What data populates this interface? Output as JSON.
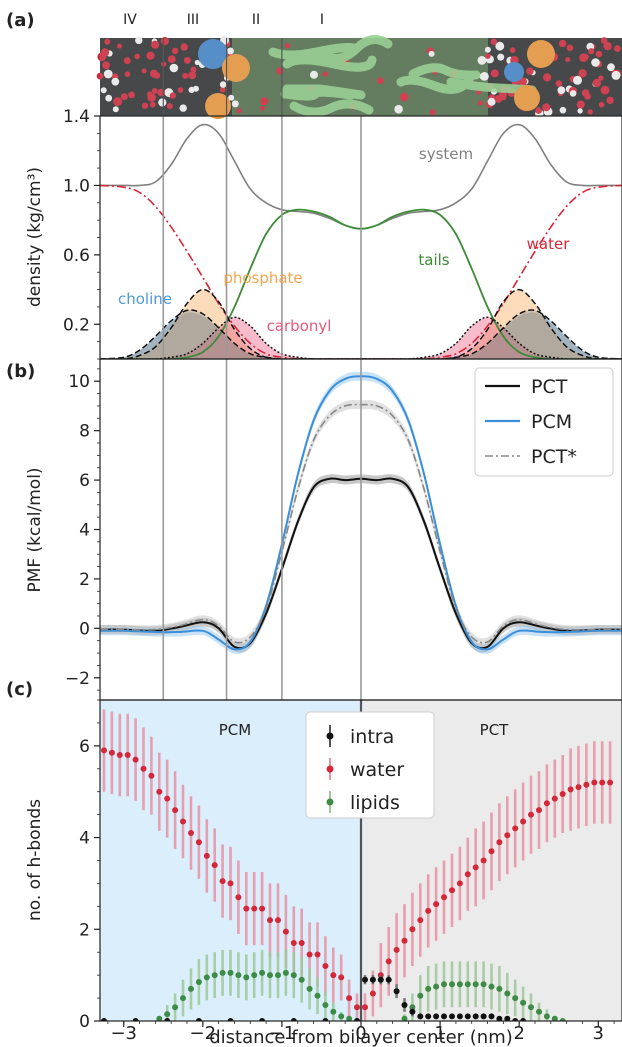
{
  "panels": {
    "a": "(a)",
    "b": "(b)",
    "c": "(c)"
  },
  "regions": [
    "IV",
    "III",
    "II",
    "I"
  ],
  "region_bounds_nm": [
    -2.5,
    -1.7,
    -1.0,
    0.0
  ],
  "chart_data": [
    {
      "type": "area",
      "panel": "(a)",
      "ylabel": "density (kg/cm³)",
      "xlim": [
        -3.3,
        3.3
      ],
      "ylim": [
        0,
        1.4
      ],
      "yticks": [
        0.2,
        0.6,
        1.0,
        1.4
      ],
      "x": [
        -3.3,
        -3.0,
        -2.8,
        -2.6,
        -2.4,
        -2.2,
        -2.0,
        -1.8,
        -1.6,
        -1.4,
        -1.2,
        -1.0,
        -0.8,
        -0.6,
        -0.4,
        -0.2,
        0.0,
        0.2,
        0.4,
        0.6,
        0.8,
        1.0,
        1.2,
        1.4,
        1.6,
        1.8,
        2.0,
        2.2,
        2.4,
        2.6,
        2.8,
        3.0,
        3.3
      ],
      "series": [
        {
          "name": "system",
          "values": [
            1.0,
            1.0,
            1.0,
            1.02,
            1.12,
            1.27,
            1.35,
            1.3,
            1.14,
            0.98,
            0.9,
            0.86,
            0.85,
            0.84,
            0.81,
            0.77,
            0.75,
            0.77,
            0.81,
            0.84,
            0.85,
            0.86,
            0.9,
            0.98,
            1.14,
            1.3,
            1.35,
            1.27,
            1.12,
            1.02,
            1.0,
            1.0,
            1.0
          ]
        },
        {
          "name": "water",
          "values": [
            1.0,
            0.99,
            0.96,
            0.88,
            0.76,
            0.62,
            0.47,
            0.32,
            0.19,
            0.09,
            0.03,
            0.01,
            0.0,
            0.0,
            0.0,
            0.0,
            0.0,
            0.0,
            0.0,
            0.0,
            0.0,
            0.01,
            0.03,
            0.09,
            0.19,
            0.32,
            0.47,
            0.62,
            0.76,
            0.88,
            0.96,
            0.99,
            1.0
          ]
        },
        {
          "name": "tails",
          "values": [
            0.0,
            0.0,
            0.0,
            0.0,
            0.0,
            0.01,
            0.04,
            0.13,
            0.3,
            0.52,
            0.72,
            0.83,
            0.86,
            0.85,
            0.82,
            0.77,
            0.75,
            0.77,
            0.82,
            0.85,
            0.86,
            0.83,
            0.72,
            0.52,
            0.3,
            0.13,
            0.04,
            0.01,
            0.0,
            0.0,
            0.0,
            0.0,
            0.0
          ]
        },
        {
          "name": "choline",
          "values": [
            0.0,
            0.01,
            0.05,
            0.13,
            0.22,
            0.28,
            0.26,
            0.18,
            0.09,
            0.03,
            0.01,
            0.0,
            0.0,
            0.0,
            0.0,
            0.0,
            0.0,
            0.0,
            0.0,
            0.0,
            0.0,
            0.0,
            0.01,
            0.03,
            0.09,
            0.18,
            0.26,
            0.28,
            0.22,
            0.13,
            0.05,
            0.01,
            0.0
          ]
        },
        {
          "name": "phosphate",
          "values": [
            0.0,
            0.0,
            0.02,
            0.07,
            0.18,
            0.32,
            0.4,
            0.33,
            0.17,
            0.06,
            0.01,
            0.0,
            0.0,
            0.0,
            0.0,
            0.0,
            0.0,
            0.0,
            0.0,
            0.0,
            0.0,
            0.0,
            0.01,
            0.06,
            0.17,
            0.33,
            0.4,
            0.32,
            0.18,
            0.07,
            0.02,
            0.0,
            0.0
          ]
        },
        {
          "name": "carbonyl",
          "values": [
            0.0,
            0.0,
            0.0,
            0.0,
            0.01,
            0.03,
            0.09,
            0.18,
            0.24,
            0.19,
            0.09,
            0.03,
            0.01,
            0.0,
            0.0,
            0.0,
            0.0,
            0.0,
            0.0,
            0.0,
            0.01,
            0.03,
            0.09,
            0.19,
            0.24,
            0.18,
            0.09,
            0.03,
            0.01,
            0.0,
            0.0,
            0.0,
            0.0
          ]
        }
      ]
    },
    {
      "type": "line",
      "panel": "(b)",
      "ylabel": "PMF (kcal/mol)",
      "xlim": [
        -3.3,
        3.3
      ],
      "ylim": [
        -2.9,
        10.9
      ],
      "yticks": [
        -2,
        0,
        2,
        4,
        6,
        8,
        10
      ],
      "legend": "top-right",
      "x": [
        -3.3,
        -3.0,
        -2.6,
        -2.3,
        -2.0,
        -1.8,
        -1.6,
        -1.4,
        -1.2,
        -1.0,
        -0.8,
        -0.6,
        -0.4,
        -0.2,
        0.0,
        0.2,
        0.4,
        0.6,
        0.8,
        1.0,
        1.2,
        1.4,
        1.6,
        1.8,
        2.0,
        2.3,
        2.6,
        3.0,
        3.3
      ],
      "series": [
        {
          "name": "PCT",
          "values": [
            -0.05,
            -0.05,
            -0.1,
            0.05,
            0.25,
            0.0,
            -0.75,
            -0.6,
            0.6,
            2.4,
            4.3,
            5.7,
            6.05,
            6.0,
            6.05,
            6.0,
            6.05,
            5.7,
            4.3,
            2.4,
            0.6,
            -0.6,
            -0.75,
            0.0,
            0.25,
            0.05,
            -0.1,
            -0.05,
            -0.05
          ]
        },
        {
          "name": "PCM",
          "values": [
            -0.1,
            -0.1,
            -0.15,
            -0.15,
            -0.1,
            -0.45,
            -0.85,
            -0.55,
            0.9,
            3.4,
            6.2,
            8.4,
            9.6,
            10.1,
            10.2,
            10.1,
            9.6,
            8.4,
            6.2,
            3.4,
            0.9,
            -0.55,
            -0.85,
            -0.45,
            -0.1,
            -0.15,
            -0.15,
            -0.1,
            -0.1
          ]
        },
        {
          "name": "PCT*",
          "values": [
            -0.05,
            -0.05,
            -0.05,
            0.1,
            0.35,
            0.1,
            -0.55,
            -0.35,
            0.8,
            3.1,
            5.6,
            7.6,
            8.6,
            9.0,
            9.05,
            9.0,
            8.6,
            7.6,
            5.6,
            3.1,
            0.8,
            -0.35,
            -0.55,
            0.1,
            0.35,
            0.1,
            -0.05,
            -0.05,
            -0.05
          ]
        }
      ]
    },
    {
      "type": "scatter",
      "panel": "(c)",
      "xlabel": "distance from bilayer center (nm)",
      "ylabel": "no. of h-bonds",
      "xlim": [
        -3.3,
        3.3
      ],
      "ylim": [
        0,
        7
      ],
      "xticks": [
        -3,
        -2,
        -1,
        0,
        1,
        2,
        3
      ],
      "yticks": [
        0,
        2,
        4,
        6
      ],
      "legend": "top-center",
      "half_labels": {
        "left": "PCM",
        "right": "PCT"
      },
      "series": [
        {
          "name": "water",
          "x": [
            -3.25,
            -3.15,
            -3.05,
            -2.95,
            -2.85,
            -2.75,
            -2.65,
            -2.55,
            -2.45,
            -2.35,
            -2.25,
            -2.15,
            -2.05,
            -1.95,
            -1.85,
            -1.75,
            -1.65,
            -1.55,
            -1.45,
            -1.35,
            -1.25,
            -1.15,
            -1.05,
            -0.95,
            -0.85,
            -0.75,
            -0.65,
            -0.55,
            -0.45,
            -0.35,
            -0.25,
            -0.15,
            -0.05
          ],
          "values": [
            5.9,
            5.85,
            5.8,
            5.8,
            5.7,
            5.5,
            5.35,
            5.0,
            4.85,
            4.6,
            4.35,
            4.1,
            3.9,
            3.6,
            3.4,
            3.05,
            3.0,
            2.7,
            2.45,
            2.45,
            2.45,
            2.2,
            2.2,
            1.95,
            1.7,
            1.7,
            1.45,
            1.45,
            1.2,
            1.0,
            0.95,
            0.5,
            0.3
          ],
          "err": [
            0.9,
            0.9,
            0.9,
            0.9,
            0.9,
            0.9,
            0.85,
            0.85,
            0.85,
            0.85,
            0.8,
            0.8,
            0.8,
            0.8,
            0.8,
            0.8,
            0.8,
            0.8,
            0.8,
            0.8,
            0.8,
            0.8,
            0.8,
            0.8,
            0.8,
            0.75,
            0.7,
            0.7,
            0.65,
            0.6,
            0.5,
            0.4,
            0.3
          ]
        },
        {
          "name": "water",
          "x": [
            0.05,
            0.15,
            0.25,
            0.35,
            0.45,
            0.55,
            0.65,
            0.75,
            0.85,
            0.95,
            1.05,
            1.15,
            1.25,
            1.35,
            1.45,
            1.55,
            1.65,
            1.75,
            1.85,
            1.95,
            2.05,
            2.15,
            2.25,
            2.35,
            2.45,
            2.55,
            2.65,
            2.75,
            2.85,
            2.95,
            3.05,
            3.15
          ],
          "values": [
            0.3,
            0.6,
            1.0,
            1.3,
            1.55,
            1.75,
            2.0,
            2.2,
            2.4,
            2.55,
            2.7,
            2.85,
            3.0,
            3.2,
            3.35,
            3.5,
            3.7,
            3.9,
            4.05,
            4.2,
            4.35,
            4.5,
            4.6,
            4.75,
            4.85,
            4.95,
            5.05,
            5.1,
            5.15,
            5.2,
            5.2,
            5.2
          ],
          "err": [
            0.3,
            0.5,
            0.7,
            0.75,
            0.8,
            0.8,
            0.8,
            0.8,
            0.8,
            0.8,
            0.8,
            0.8,
            0.8,
            0.8,
            0.85,
            0.85,
            0.85,
            0.85,
            0.85,
            0.85,
            0.85,
            0.85,
            0.85,
            0.85,
            0.85,
            0.85,
            0.9,
            0.9,
            0.9,
            0.9,
            0.9,
            0.9
          ]
        },
        {
          "name": "lipids",
          "x": [
            -2.55,
            -2.45,
            -2.35,
            -2.25,
            -2.15,
            -2.05,
            -1.95,
            -1.85,
            -1.75,
            -1.65,
            -1.55,
            -1.45,
            -1.35,
            -1.25,
            -1.15,
            -1.05,
            -0.95,
            -0.85,
            -0.75,
            -0.65,
            -0.55,
            -0.45,
            -0.35,
            -0.25,
            -0.15,
            -0.05
          ],
          "values": [
            0.05,
            0.15,
            0.3,
            0.5,
            0.7,
            0.85,
            0.95,
            1.0,
            1.05,
            1.05,
            1.0,
            0.95,
            1.0,
            1.05,
            1.0,
            1.0,
            1.05,
            1.0,
            0.9,
            0.7,
            0.55,
            0.35,
            0.2,
            0.1,
            0.05,
            0.0
          ],
          "err": [
            0.05,
            0.2,
            0.3,
            0.4,
            0.45,
            0.5,
            0.5,
            0.5,
            0.5,
            0.5,
            0.5,
            0.5,
            0.5,
            0.5,
            0.5,
            0.5,
            0.5,
            0.5,
            0.5,
            0.45,
            0.4,
            0.3,
            0.2,
            0.1,
            0.05,
            0.0
          ]
        },
        {
          "name": "lipids",
          "x": [
            0.55,
            0.65,
            0.75,
            0.85,
            0.95,
            1.05,
            1.15,
            1.25,
            1.35,
            1.45,
            1.55,
            1.65,
            1.75,
            1.85,
            1.95,
            2.05,
            2.15,
            2.25,
            2.35,
            2.45,
            2.55
          ],
          "values": [
            0.05,
            0.3,
            0.55,
            0.7,
            0.75,
            0.8,
            0.8,
            0.8,
            0.8,
            0.8,
            0.8,
            0.75,
            0.7,
            0.6,
            0.5,
            0.4,
            0.3,
            0.2,
            0.1,
            0.05,
            0.0
          ],
          "err": [
            0.1,
            0.3,
            0.45,
            0.5,
            0.5,
            0.5,
            0.5,
            0.5,
            0.5,
            0.5,
            0.5,
            0.5,
            0.5,
            0.45,
            0.4,
            0.35,
            0.3,
            0.2,
            0.15,
            0.05,
            0.0
          ]
        },
        {
          "name": "intra",
          "x": [
            0.05,
            0.15,
            0.25,
            0.35,
            0.45,
            0.55,
            0.65,
            0.75,
            0.85,
            0.95,
            1.05,
            1.15,
            1.25,
            1.35,
            1.45,
            1.55,
            1.65,
            1.75,
            1.85,
            1.95,
            2.05
          ],
          "values": [
            0.9,
            0.9,
            0.9,
            0.9,
            0.65,
            0.35,
            0.2,
            0.1,
            0.1,
            0.1,
            0.1,
            0.1,
            0.1,
            0.1,
            0.1,
            0.1,
            0.1,
            0.05,
            0.05,
            0.0,
            0.0
          ],
          "err": [
            0.1,
            0.1,
            0.1,
            0.1,
            0.15,
            0.15,
            0.1,
            0.05,
            0.05,
            0.05,
            0.05,
            0.05,
            0.05,
            0.05,
            0.05,
            0.05,
            0.05,
            0.05,
            0.05,
            0.0,
            0.0
          ]
        },
        {
          "name": "intra",
          "x": [
            -3.25,
            -2.85,
            -2.45,
            -2.05,
            -1.65,
            -1.25,
            -0.85,
            -0.45,
            -0.05
          ],
          "values": [
            0.0,
            0.0,
            0.0,
            0.0,
            0.0,
            0.0,
            0.0,
            0.0,
            0.0
          ],
          "err": [
            0,
            0,
            0,
            0,
            0,
            0,
            0,
            0,
            0
          ]
        }
      ]
    }
  ],
  "colors": {
    "system": "#808080",
    "water": "#d62739",
    "tails": "#3d8b37",
    "choline": "#4f9ad3",
    "phosphate": "#f4a64f",
    "carbonyl": "#e8587c",
    "PCT": "#111111",
    "PCM": "#3a8fd8",
    "PCTstar": "#888888",
    "intra": "#111111",
    "lipids": "#3d8b45",
    "pcm_bg": "#dbeefb",
    "pct_bg": "#ebebeb"
  }
}
